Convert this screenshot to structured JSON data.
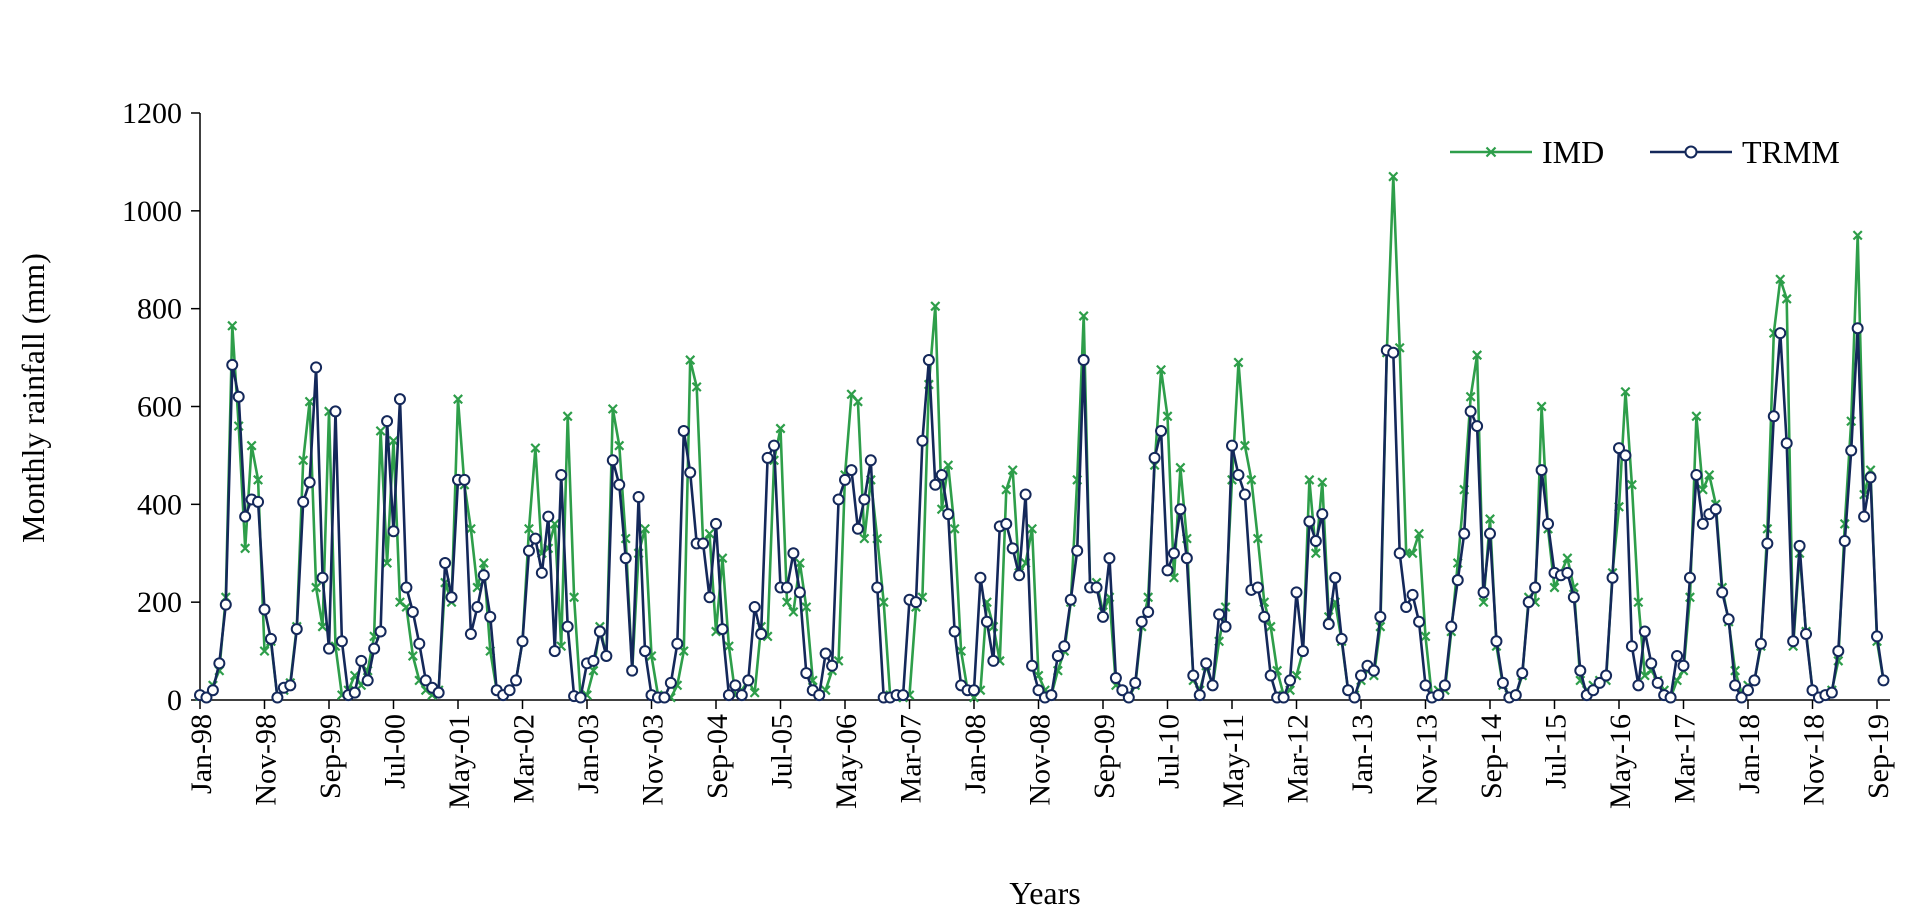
{
  "chart_data": {
    "type": "line",
    "title": "",
    "xlabel": "Years",
    "ylabel": "Monthly rainfall (mm)",
    "ylim": [
      0,
      1200
    ],
    "yticks": [
      "0",
      "200",
      "400",
      "600",
      "800",
      "1000",
      "1200"
    ],
    "x_start": "Jan-98",
    "x_end": "Dec-19",
    "xticks": [
      {
        "label": "Jan-98",
        "index": 0
      },
      {
        "label": "Nov-98",
        "index": 10
      },
      {
        "label": "Sep-99",
        "index": 20
      },
      {
        "label": "Jul-00",
        "index": 30
      },
      {
        "label": "May-01",
        "index": 40
      },
      {
        "label": "Mar-02",
        "index": 50
      },
      {
        "label": "Jan-03",
        "index": 60
      },
      {
        "label": "Nov-03",
        "index": 70
      },
      {
        "label": "Sep-04",
        "index": 80
      },
      {
        "label": "Jul-05",
        "index": 90
      },
      {
        "label": "May-06",
        "index": 100
      },
      {
        "label": "Mar-07",
        "index": 110
      },
      {
        "label": "Jan-08",
        "index": 120
      },
      {
        "label": "Nov-08",
        "index": 130
      },
      {
        "label": "Sep-09",
        "index": 140
      },
      {
        "label": "Jul-10",
        "index": 150
      },
      {
        "label": "May-11",
        "index": 160
      },
      {
        "label": "Mar-12",
        "index": 170
      },
      {
        "label": "Jan-13",
        "index": 180
      },
      {
        "label": "Nov-13",
        "index": 190
      },
      {
        "label": "Sep-14",
        "index": 200
      },
      {
        "label": "Jul-15",
        "index": 210
      },
      {
        "label": "May-16",
        "index": 220
      },
      {
        "label": "Mar-17",
        "index": 230
      },
      {
        "label": "Jan-18",
        "index": 240
      },
      {
        "label": "Nov-18",
        "index": 250
      },
      {
        "label": "Sep-19",
        "index": 260
      }
    ],
    "grid": false,
    "legend_position": "top-right",
    "series": [
      {
        "name": "IMD",
        "color": "#2E9E4A",
        "marker": "x",
        "values": [
          8,
          5,
          30,
          60,
          210,
          765,
          560,
          310,
          520,
          450,
          100,
          120,
          5,
          20,
          35,
          150,
          490,
          610,
          230,
          150,
          590,
          110,
          10,
          20,
          50,
          30,
          60,
          130,
          550,
          280,
          530,
          200,
          190,
          90,
          40,
          20,
          10,
          20,
          240,
          200,
          615,
          440,
          350,
          230,
          280,
          100,
          20,
          10,
          20,
          40,
          120,
          350,
          515,
          300,
          310,
          360,
          110,
          580,
          210,
          8,
          10,
          60,
          150,
          90,
          595,
          520,
          330,
          60,
          300,
          350,
          90,
          10,
          5,
          5,
          30,
          100,
          695,
          640,
          320,
          340,
          140,
          290,
          110,
          10,
          20,
          40,
          15,
          150,
          130,
          490,
          555,
          200,
          180,
          280,
          190,
          40,
          10,
          20,
          60,
          80,
          460,
          625,
          610,
          330,
          450,
          330,
          200,
          10,
          5,
          5,
          10,
          190,
          210,
          645,
          805,
          390,
          480,
          350,
          100,
          20,
          5,
          20,
          200,
          150,
          80,
          430,
          470,
          260,
          280,
          350,
          50,
          20,
          10,
          60,
          100,
          200,
          450,
          785,
          230,
          240,
          180,
          210,
          30,
          20,
          5,
          30,
          150,
          210,
          480,
          675,
          580,
          250,
          475,
          330,
          40,
          20,
          70,
          30,
          120,
          190,
          450,
          690,
          520,
          450,
          330,
          200,
          150,
          60,
          10,
          20,
          50,
          100,
          450,
          300,
          445,
          170,
          200,
          120,
          20,
          10,
          40,
          60,
          50,
          150,
          710,
          1070,
          720,
          300,
          300,
          340,
          130,
          5,
          20,
          20,
          140,
          280,
          430,
          620,
          705,
          200,
          370,
          110,
          30,
          10,
          10,
          50,
          210,
          200,
          600,
          350,
          230,
          260,
          290,
          230,
          40,
          20,
          30,
          40,
          40,
          260,
          395,
          630,
          440,
          200,
          50,
          60,
          40,
          20,
          5,
          40,
          60,
          210,
          580,
          430,
          460,
          400,
          230,
          160,
          60,
          15,
          30,
          40,
          110,
          350,
          750,
          860,
          820,
          110,
          300,
          140,
          20,
          10,
          10,
          20,
          80,
          360,
          570,
          950,
          420,
          470,
          120,
          40
        ]
      },
      {
        "name": "TRMM",
        "color": "#14285A",
        "marker": "o",
        "values": [
          10,
          5,
          20,
          75,
          195,
          685,
          620,
          375,
          410,
          405,
          185,
          125,
          5,
          25,
          30,
          145,
          405,
          445,
          680,
          250,
          105,
          590,
          120,
          10,
          15,
          80,
          40,
          105,
          140,
          570,
          345,
          615,
          230,
          180,
          115,
          40,
          25,
          15,
          280,
          210,
          450,
          450,
          135,
          190,
          255,
          170,
          20,
          10,
          20,
          40,
          120,
          305,
          330,
          260,
          375,
          100,
          460,
          150,
          8,
          5,
          75,
          80,
          140,
          90,
          490,
          440,
          290,
          60,
          415,
          100,
          10,
          5,
          5,
          35,
          115,
          550,
          465,
          320,
          320,
          210,
          360,
          145,
          10,
          30,
          10,
          40,
          190,
          135,
          495,
          520,
          230,
          230,
          300,
          220,
          55,
          20,
          10,
          95,
          70,
          410,
          450,
          470,
          350,
          410,
          490,
          230,
          5,
          5,
          10,
          10,
          205,
          200,
          530,
          695,
          440,
          460,
          380,
          140,
          30,
          20,
          20,
          250,
          160,
          80,
          355,
          360,
          310,
          255,
          420,
          70,
          20,
          5,
          10,
          90,
          110,
          205,
          305,
          695,
          230,
          230,
          170,
          290,
          45,
          20,
          5,
          35,
          160,
          180,
          495,
          550,
          265,
          300,
          390,
          290,
          50,
          10,
          75,
          30,
          175,
          150,
          520,
          460,
          420,
          225,
          230,
          170,
          50,
          5,
          5,
          40,
          220,
          100,
          365,
          325,
          380,
          155,
          250,
          125,
          20,
          5,
          50,
          70,
          60,
          170,
          715,
          710,
          300,
          190,
          215,
          160,
          30,
          5,
          10,
          30,
          150,
          245,
          340,
          590,
          560,
          220,
          340,
          120,
          35,
          5,
          10,
          55,
          200,
          230,
          470,
          360,
          260,
          255,
          260,
          210,
          60,
          10,
          20,
          35,
          50,
          250,
          515,
          500,
          110,
          30,
          140,
          75,
          35,
          10,
          5,
          90,
          70,
          250,
          460,
          360,
          380,
          390,
          220,
          165,
          30,
          5,
          20,
          40,
          115,
          320,
          580,
          750,
          525,
          120,
          315,
          135,
          20,
          5,
          10,
          15,
          100,
          325,
          510,
          760,
          375,
          455,
          130,
          40
        ]
      }
    ]
  }
}
